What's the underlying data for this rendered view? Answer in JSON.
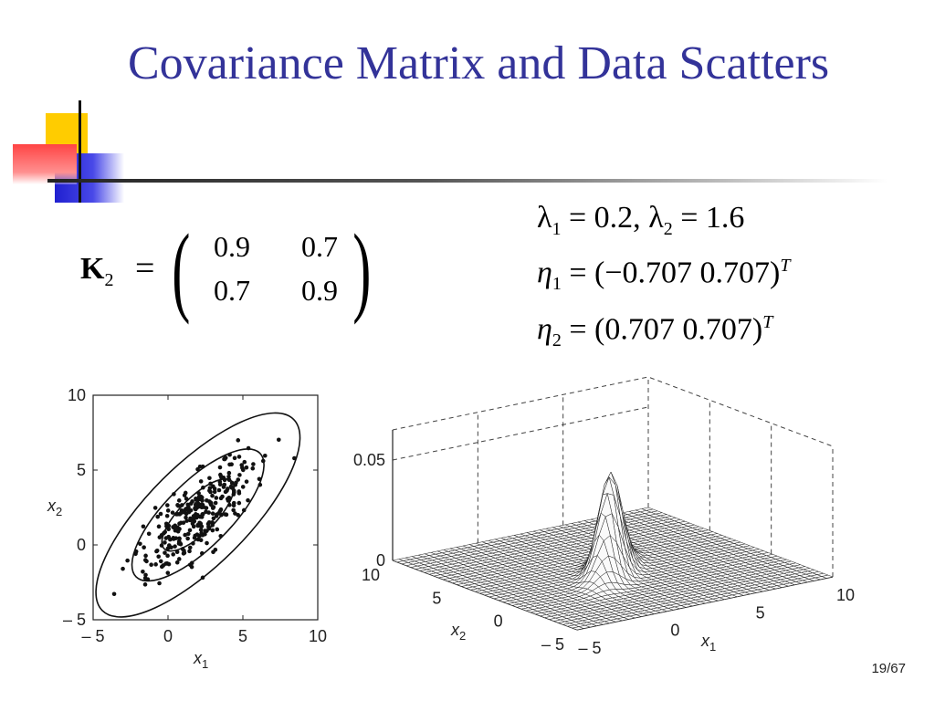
{
  "slide": {
    "title": "Covariance Matrix and Data Scatters",
    "page_number": "19/67"
  },
  "matrix": {
    "name": "K",
    "subscript": "2",
    "equals": "=",
    "rows": [
      [
        "0.9",
        "0.7"
      ],
      [
        "0.7",
        "0.9"
      ]
    ]
  },
  "eigen": {
    "lambda_line": {
      "sym1": "λ",
      "sub1": "1",
      "val1": " = 0.2, ",
      "sym2": "λ",
      "sub2": "2",
      "val2": " = 1.6"
    },
    "eta1_line": {
      "sym": "η",
      "sub": "1",
      "val": " = (−0.707 0.707)",
      "sup": "T"
    },
    "eta2_line": {
      "sym": "η",
      "sub": "2",
      "val": " = (0.707 0.707)",
      "sup": "T"
    }
  },
  "scatter_plot": {
    "x_ticks": [
      "– 5",
      "0",
      "5",
      "10"
    ],
    "y_ticks": [
      "10",
      "5",
      "0",
      "– 5"
    ],
    "x_label": "x",
    "x_label_sub": "1",
    "y_label": "x",
    "y_label_sub": "2"
  },
  "surface_plot": {
    "z_ticks": [
      "0.05",
      "0"
    ],
    "x2_ticks": [
      "10",
      "5",
      "0",
      "– 5"
    ],
    "x1_ticks": [
      "– 5",
      "0",
      "5",
      "10"
    ],
    "x1_label": "x",
    "x1_label_sub": "1",
    "x2_label": "x",
    "x2_label_sub": "2"
  },
  "chart_data": [
    {
      "type": "scatter",
      "xlim": [
        -5,
        10
      ],
      "ylim": [
        -5,
        10
      ],
      "mean": [
        2,
        2
      ],
      "covariance": [
        [
          0.9,
          0.7
        ],
        [
          0.7,
          0.9
        ]
      ],
      "contours": "concentric ellipses along eigenvector (0.707, 0.707)",
      "n_points_approx": 300
    },
    {
      "type": "surface",
      "zlim": [
        0,
        0.05
      ],
      "xlim": [
        -5,
        10
      ],
      "ylim": [
        -5,
        10
      ],
      "peak_z_approx": 0.05
    }
  ],
  "colors": {
    "title": "#333399",
    "deco_yellow": "#ffd400",
    "deco_blue": "#2f2fd8",
    "deco_red": "#ff3333"
  }
}
